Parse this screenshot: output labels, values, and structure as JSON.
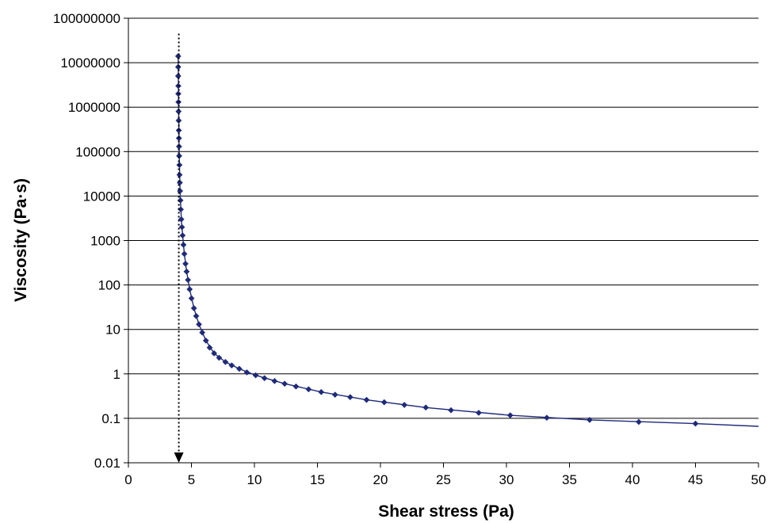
{
  "chart_data": {
    "type": "scatter",
    "title": "",
    "xlabel": "Shear stress (Pa)",
    "ylabel": "Viscosity (Pa·s)",
    "xlim": [
      0,
      50
    ],
    "ylim": [
      0.01,
      100000000
    ],
    "y_scale": "log",
    "grid": {
      "horizontal": true,
      "vertical": false
    },
    "legend": "none",
    "x_ticks": [
      0,
      5,
      10,
      15,
      20,
      25,
      30,
      35,
      40,
      45,
      50
    ],
    "x_tick_labels": [
      "0",
      "5",
      "10",
      "15",
      "20",
      "25",
      "30",
      "35",
      "40",
      "45",
      "50"
    ],
    "y_ticks": [
      0.01,
      0.1,
      1,
      10,
      100,
      1000,
      10000,
      100000,
      1000000,
      10000000,
      100000000
    ],
    "y_tick_labels": [
      "0.01",
      "0.1",
      "1",
      "10",
      "100",
      "1000",
      "10000",
      "100000",
      "1000000",
      "10000000",
      "100000000"
    ],
    "series": [
      {
        "color": "#1f2a7a",
        "marker": "diamond",
        "points": [
          [
            3.95,
            14000000
          ],
          [
            3.95,
            8000000
          ],
          [
            3.95,
            5000000
          ],
          [
            3.96,
            3000000
          ],
          [
            3.96,
            2000000
          ],
          [
            3.97,
            1300000
          ],
          [
            3.98,
            800000
          ],
          [
            3.99,
            500000
          ],
          [
            4.0,
            300000
          ],
          [
            4.01,
            200000
          ],
          [
            4.02,
            130000
          ],
          [
            4.03,
            80000
          ],
          [
            4.05,
            50000
          ],
          [
            4.06,
            30000
          ],
          [
            4.08,
            20000
          ],
          [
            4.1,
            13000
          ],
          [
            4.13,
            8000
          ],
          [
            4.16,
            5000
          ],
          [
            4.2,
            3000
          ],
          [
            4.25,
            2000
          ],
          [
            4.3,
            1300
          ],
          [
            4.37,
            800
          ],
          [
            4.44,
            500
          ],
          [
            4.53,
            300
          ],
          [
            4.62,
            200
          ],
          [
            4.73,
            130
          ],
          [
            4.86,
            80
          ],
          [
            5.01,
            50
          ],
          [
            5.2,
            30
          ],
          [
            5.38,
            20
          ],
          [
            5.6,
            13
          ],
          [
            5.86,
            8.5
          ],
          [
            6.15,
            5.6
          ],
          [
            6.45,
            3.9
          ],
          [
            6.8,
            2.9
          ],
          [
            7.2,
            2.3
          ],
          [
            7.7,
            1.85
          ],
          [
            8.2,
            1.55
          ],
          [
            8.8,
            1.3
          ],
          [
            9.4,
            1.08
          ],
          [
            10.1,
            0.93
          ],
          [
            10.8,
            0.8
          ],
          [
            11.6,
            0.69
          ],
          [
            12.4,
            0.6
          ],
          [
            13.3,
            0.52
          ],
          [
            14.3,
            0.45
          ],
          [
            15.3,
            0.39
          ],
          [
            16.4,
            0.34
          ],
          [
            17.6,
            0.3
          ],
          [
            18.9,
            0.26
          ],
          [
            20.3,
            0.23
          ],
          [
            21.9,
            0.2
          ],
          [
            23.6,
            0.175
          ],
          [
            25.6,
            0.152
          ],
          [
            27.8,
            0.133
          ],
          [
            30.3,
            0.117
          ],
          [
            33.2,
            0.103
          ],
          [
            36.6,
            0.092
          ],
          [
            40.5,
            0.083
          ],
          [
            45.0,
            0.076
          ]
        ],
        "fit_line": [
          [
            3.95,
            14000000
          ],
          [
            4.02,
            130000
          ],
          [
            4.1,
            13000
          ],
          [
            4.2,
            3000
          ],
          [
            4.3,
            1300
          ],
          [
            4.44,
            500
          ],
          [
            4.62,
            200
          ],
          [
            4.86,
            80
          ],
          [
            5.2,
            30
          ],
          [
            5.6,
            13
          ],
          [
            6.15,
            5.6
          ],
          [
            6.8,
            2.9
          ],
          [
            7.7,
            1.85
          ],
          [
            8.8,
            1.3
          ],
          [
            10.1,
            0.93
          ],
          [
            12.4,
            0.6
          ],
          [
            15.3,
            0.39
          ],
          [
            18.9,
            0.26
          ],
          [
            23.6,
            0.175
          ],
          [
            30.3,
            0.117
          ],
          [
            36.6,
            0.092
          ],
          [
            45.0,
            0.076
          ],
          [
            50.0,
            0.066
          ]
        ]
      }
    ],
    "annotations": [
      {
        "type": "dotted-arrow-down",
        "x": 4.0,
        "y_from": 45000000,
        "y_to": 0.01
      }
    ]
  }
}
